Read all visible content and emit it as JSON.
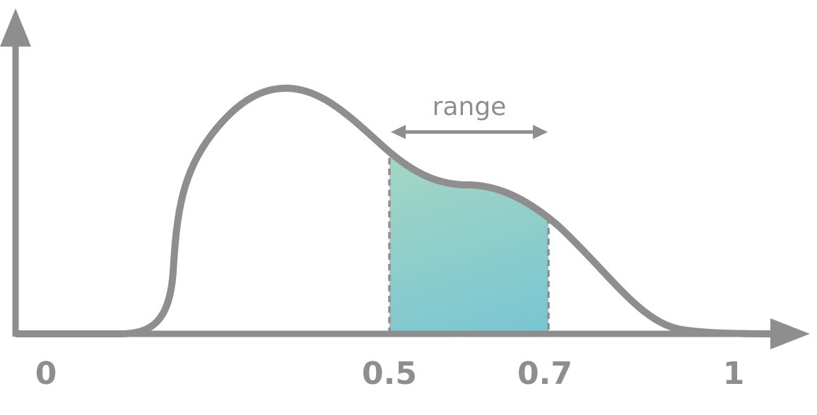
{
  "diagram": {
    "range_label": "range",
    "tick_labels": [
      "0",
      "0.5",
      "0.7",
      "1"
    ],
    "highlight_interval": [
      0.5,
      0.7
    ],
    "colors": {
      "stroke": "#8e8e8e",
      "fill_start": "#c4e5b6",
      "fill_end": "#6cbfd8",
      "dash": "#8e8e8e",
      "background": "#ffffff"
    }
  }
}
